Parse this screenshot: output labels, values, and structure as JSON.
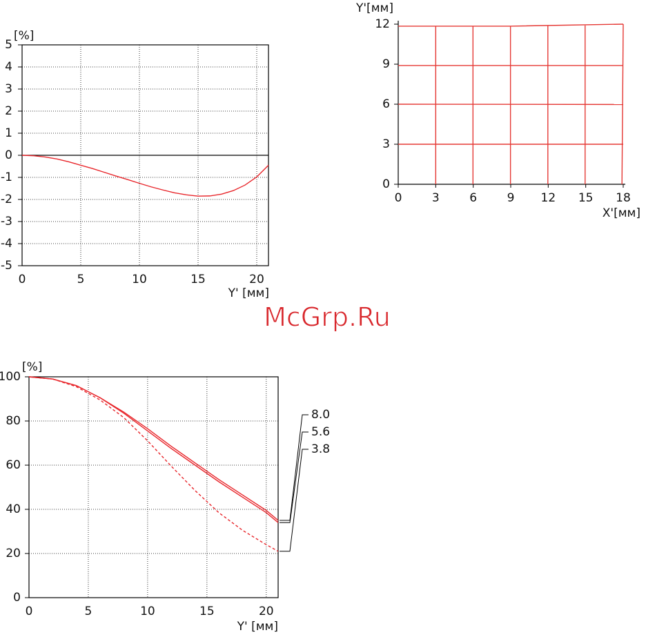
{
  "watermark": "McGrp.Ru",
  "chart_data": [
    {
      "type": "line",
      "ylabel": "[%]",
      "xlabel": "Y' [мм]",
      "x": [
        0,
        1,
        2,
        3,
        4,
        5,
        6,
        7,
        8,
        9,
        10,
        11,
        12,
        13,
        14,
        15,
        16,
        17,
        18,
        19,
        20,
        21
      ],
      "series": [
        {
          "color": "#e8262b",
          "linestyle": "solid",
          "values": [
            0,
            -0.02,
            -0.08,
            -0.17,
            -0.3,
            -0.45,
            -0.6,
            -0.77,
            -0.94,
            -1.1,
            -1.27,
            -1.43,
            -1.57,
            -1.7,
            -1.79,
            -1.85,
            -1.84,
            -1.76,
            -1.6,
            -1.35,
            -0.98,
            -0.45
          ]
        }
      ],
      "xlim": [
        0,
        21
      ],
      "xticks": [
        0,
        5,
        10,
        15,
        20
      ],
      "ylim": [
        -5,
        5
      ],
      "yticks": [
        5,
        4,
        3,
        2,
        1,
        0,
        -1,
        -2,
        -3,
        -4,
        -5
      ],
      "grid": true
    },
    {
      "type": "line",
      "ylabel": "Y'[мм]",
      "xlabel": "X'[мм]",
      "series": [
        {
          "color": "#e53935",
          "linestyle": "solid",
          "x": [
            0,
            18
          ],
          "values": [
            3,
            3
          ]
        },
        {
          "color": "#e53935",
          "linestyle": "solid",
          "x": [
            0,
            18
          ],
          "values": [
            6,
            5.98
          ]
        },
        {
          "color": "#e53935",
          "linestyle": "solid",
          "x": [
            0,
            18
          ],
          "values": [
            8.9,
            8.9
          ]
        },
        {
          "color": "#e53935",
          "linestyle": "solid",
          "x": [
            0,
            9,
            18
          ],
          "values": [
            11.85,
            11.85,
            12
          ]
        },
        {
          "color": "#e53935",
          "linestyle": "solid",
          "x": [
            3,
            3
          ],
          "values": [
            0,
            11.85
          ]
        },
        {
          "color": "#e53935",
          "linestyle": "solid",
          "x": [
            5.98,
            5.98
          ],
          "values": [
            0,
            11.85
          ]
        },
        {
          "color": "#e53935",
          "linestyle": "solid",
          "x": [
            8.98,
            8.98
          ],
          "values": [
            0,
            11.85
          ]
        },
        {
          "color": "#e53935",
          "linestyle": "solid",
          "x": [
            11.97,
            11.97
          ],
          "values": [
            0,
            11.87
          ]
        },
        {
          "color": "#e53935",
          "linestyle": "solid",
          "x": [
            14.95,
            14.95
          ],
          "values": [
            0,
            11.9
          ]
        },
        {
          "color": "#e53935",
          "linestyle": "solid",
          "x": [
            17.9,
            18
          ],
          "values": [
            0,
            12
          ]
        }
      ],
      "xlim": [
        0,
        18
      ],
      "xticks": [
        0,
        3,
        6,
        9,
        12,
        15,
        18
      ],
      "ylim": [
        0,
        12
      ],
      "yticks": [
        0,
        3,
        6,
        9,
        12
      ],
      "grid": false
    },
    {
      "type": "line",
      "ylabel": "[%]",
      "xlabel": "Y' [мм]",
      "x": [
        0,
        2,
        4,
        6,
        8,
        10,
        12,
        14,
        16,
        18,
        20,
        21
      ],
      "series": [
        {
          "name": "8.0",
          "color": "#e8262b",
          "linestyle": "solid",
          "values": [
            100,
            99,
            96,
            90.5,
            84,
            76.5,
            68.5,
            61,
            53.5,
            46.5,
            39.5,
            35
          ]
        },
        {
          "name": "5.6",
          "color": "#e8262b",
          "linestyle": "solid",
          "values": [
            100,
            99,
            96,
            90.5,
            83.5,
            75.5,
            67.5,
            60,
            52.5,
            45.5,
            38.5,
            34
          ]
        },
        {
          "name": "3.8",
          "color": "#e8262b",
          "linestyle": "dashed",
          "values": [
            100,
            99,
            95.5,
            89.5,
            81.5,
            71,
            59.5,
            48.5,
            38.5,
            30.5,
            24,
            21
          ]
        }
      ],
      "xlim": [
        0,
        21
      ],
      "xticks": [
        0,
        5,
        10,
        15,
        20
      ],
      "ylim": [
        0,
        100
      ],
      "yticks": [
        0,
        20,
        40,
        60,
        80,
        100
      ],
      "grid": true
    }
  ]
}
